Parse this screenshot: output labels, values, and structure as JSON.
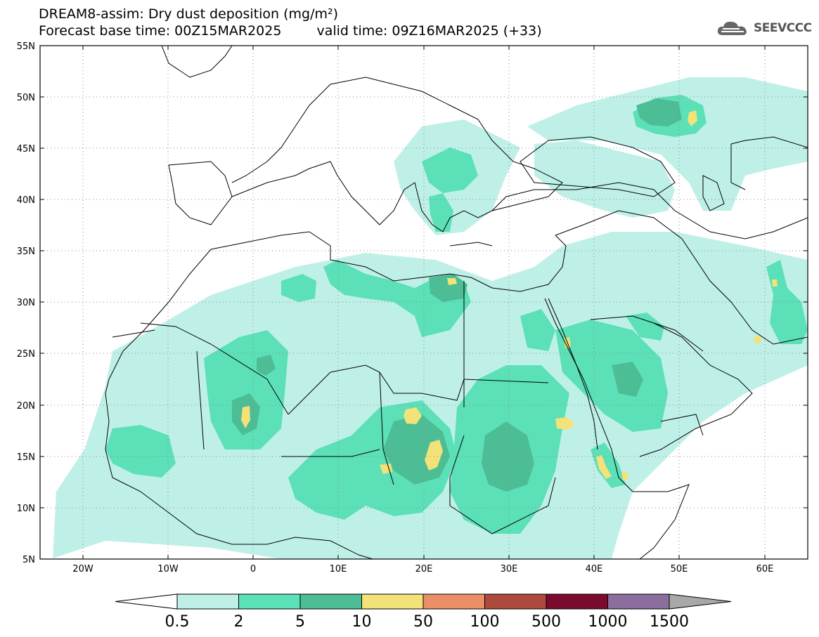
{
  "title": {
    "line1": "DREAM8-assim: Dry dust deposition (mg/m²)",
    "base_time": "Forecast base time: 00Z15MAR2025",
    "valid_time": "valid time: 09Z16MAR2025 (+33)"
  },
  "logo": {
    "text": "SEEVCCC",
    "icon": "cloud-logo-icon"
  },
  "map": {
    "lon_range": [
      -25,
      65
    ],
    "lat_range": [
      5,
      55
    ],
    "lat_ticks": [
      "55N",
      "50N",
      "45N",
      "40N",
      "35N",
      "30N",
      "25N",
      "20N",
      "15N",
      "10N",
      "5N"
    ],
    "lon_ticks": [
      "20W",
      "10W",
      "0",
      "10E",
      "20E",
      "30E",
      "40E",
      "50E",
      "60E"
    ],
    "land_outline_color": "#000000",
    "grid": true
  },
  "legend": {
    "labels": [
      "0.5",
      "2",
      "5",
      "10",
      "50",
      "100",
      "500",
      "1000",
      "1500"
    ],
    "colors": [
      "#bff0e8",
      "#5ce0b8",
      "#4dbd95",
      "#f2e278",
      "#eb8f66",
      "#ad4a3e",
      "#7a0a2e",
      "#8c6e9e"
    ],
    "under_color": "#ffffff",
    "over_color": "#a8a8a8"
  }
}
